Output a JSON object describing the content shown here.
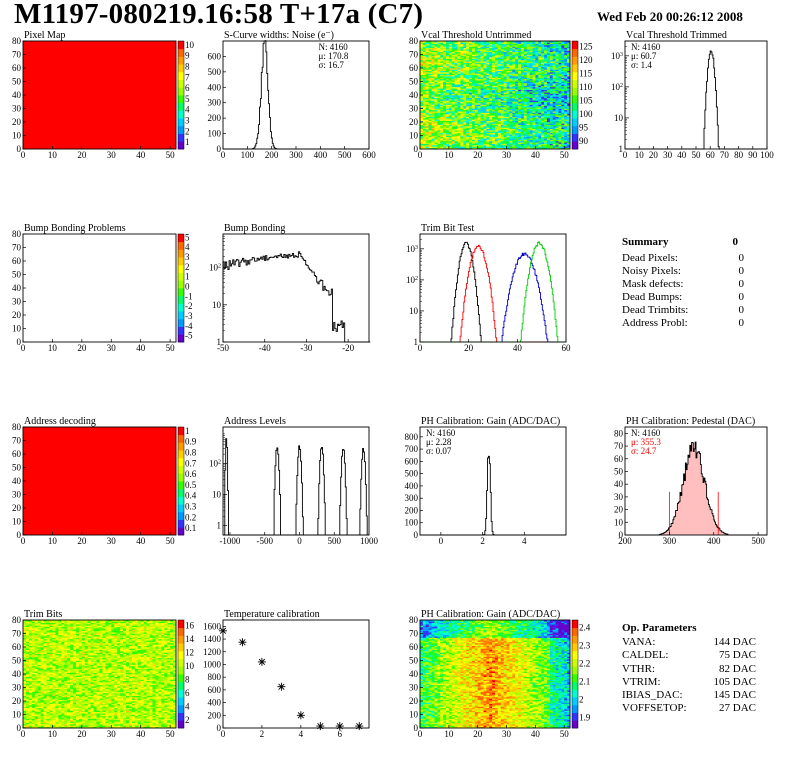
{
  "header": {
    "title": "M1197-080219.16:58 T+17a (C7)",
    "date": "Wed Feb 20 00:26:12 2008"
  },
  "summary": {
    "title": "Summary",
    "total": "0",
    "rows": [
      {
        "label": "Dead Pixels:",
        "value": "0"
      },
      {
        "label": "Noisy Pixels:",
        "value": "0"
      },
      {
        "label": "Mask defects:",
        "value": "0"
      },
      {
        "label": "Dead Bumps:",
        "value": "0"
      },
      {
        "label": "Dead Trimbits:",
        "value": "0"
      },
      {
        "label": "Address Probl:",
        "value": "0"
      }
    ]
  },
  "op_params": {
    "title": "Op. Parameters",
    "rows": [
      {
        "label": "VANA:",
        "value": "144 DAC"
      },
      {
        "label": "CALDEL:",
        "value": "75 DAC"
      },
      {
        "label": "VTHR:",
        "value": "82 DAC"
      },
      {
        "label": "VTRIM:",
        "value": "105 DAC"
      },
      {
        "label": "IBIAS_DAC:",
        "value": "145 DAC"
      },
      {
        "label": "VOFFSETOP:",
        "value": "27 DAC"
      }
    ]
  },
  "colors": {
    "red": "#ff0000",
    "green": "#00cc00",
    "blue": "#0000cc",
    "black": "#000000"
  },
  "chart_data": [
    {
      "id": "pixel-map",
      "type": "heatmap",
      "title": "Pixel Map",
      "pattern": "uniform",
      "xlim": [
        0,
        52
      ],
      "ylim": [
        0,
        80
      ],
      "xticks": [
        0,
        10,
        20,
        30,
        40,
        50
      ],
      "yticks": [
        0,
        10,
        20,
        30,
        40,
        50,
        60,
        70,
        80
      ],
      "palette": {
        "ticks": [
          "1",
          "2",
          "3",
          "4",
          "5",
          "6",
          "7",
          "8",
          "9",
          "10"
        ]
      }
    },
    {
      "id": "scurve-noise",
      "type": "histogram",
      "title": "S-Curve widths: Noise (e⁻)",
      "xlim": [
        0,
        600
      ],
      "ylim": [
        0,
        700
      ],
      "xticks": [
        0,
        100,
        200,
        300,
        400,
        500,
        600
      ],
      "yticks": [
        0,
        100,
        200,
        300,
        400,
        500,
        600
      ],
      "stats": [
        "N: 4160",
        "μ: 170.8",
        "σ: 16.7"
      ],
      "peaks": [
        {
          "mean": 170.8,
          "sigma": 14,
          "height": 660,
          "color": "#000000"
        }
      ]
    },
    {
      "id": "vcal-untrimmed",
      "type": "heatmap",
      "title": "Vcal Threshold Untrimmed",
      "pattern": "untrimmed",
      "xlim": [
        0,
        52
      ],
      "ylim": [
        0,
        80
      ],
      "xticks": [
        0,
        10,
        20,
        30,
        40,
        50
      ],
      "yticks": [
        0,
        10,
        20,
        30,
        40,
        50,
        60,
        70,
        80
      ],
      "palette": {
        "ticks": [
          "90",
          "95",
          "100",
          "105",
          "110",
          "115",
          "120",
          "125"
        ]
      }
    },
    {
      "id": "vcal-trimmed",
      "type": "histogram",
      "title": "Vcal Threshold Trimmed",
      "log": true,
      "xlim": [
        0,
        100
      ],
      "ylim": [
        1,
        3000
      ],
      "xticks": [
        0,
        10,
        20,
        30,
        40,
        50,
        60,
        70,
        80,
        90,
        100
      ],
      "ylogticks": [
        1,
        10,
        100,
        1000
      ],
      "stats": [
        "N: 4160",
        "μ: 60.7",
        "σ: 1.4"
      ],
      "peaks": [
        {
          "mean": 60.7,
          "sigma": 1.4,
          "height": 1400,
          "color": "#000000"
        }
      ]
    },
    {
      "id": "bump-problems",
      "type": "heatmap",
      "title": "Bump Bonding Problems",
      "pattern": "empty",
      "xlim": [
        0,
        52
      ],
      "ylim": [
        0,
        80
      ],
      "xticks": [
        0,
        10,
        20,
        30,
        40,
        50
      ],
      "yticks": [
        0,
        10,
        20,
        30,
        40,
        50,
        60,
        70,
        80
      ],
      "palette": {
        "ticks": [
          "-5",
          "-4",
          "-3",
          "-2",
          "-1",
          "0",
          "1",
          "2",
          "3",
          "4",
          "5"
        ]
      }
    },
    {
      "id": "bump-bonding",
      "type": "histogram",
      "title": "Bump Bonding",
      "log": true,
      "xlim": [
        -50,
        -15
      ],
      "ylim": [
        1,
        800
      ],
      "xticks": [
        -50,
        -40,
        -30,
        -20
      ],
      "ylogticks": [
        1,
        10,
        100
      ],
      "shape": "bump"
    },
    {
      "id": "trim-bit-test",
      "type": "histogram",
      "title": "Trim Bit Test",
      "log": true,
      "xlim": [
        0,
        60
      ],
      "ylim": [
        1,
        3000
      ],
      "xticks": [
        0,
        20,
        40,
        60
      ],
      "ylogticks": [
        1,
        10,
        100,
        1000
      ],
      "peaks": [
        {
          "mean": 19,
          "sigma": 1.6,
          "height": 1500,
          "color": "#000000"
        },
        {
          "mean": 24,
          "sigma": 2.0,
          "height": 1200,
          "color": "#ff0000"
        },
        {
          "mean": 43,
          "sigma": 2.6,
          "height": 700,
          "color": "#0000cc"
        },
        {
          "mean": 49,
          "sigma": 2.0,
          "height": 1500,
          "color": "#00cc00"
        }
      ]
    },
    {
      "id": "address-decoding",
      "type": "heatmap",
      "title": "Address decoding",
      "pattern": "uniform",
      "xlim": [
        0,
        52
      ],
      "ylim": [
        0,
        80
      ],
      "xticks": [
        0,
        10,
        20,
        30,
        40,
        50
      ],
      "yticks": [
        0,
        10,
        20,
        30,
        40,
        50,
        60,
        70,
        80
      ],
      "palette": {
        "ticks": [
          "0.1",
          "0.2",
          "0.3",
          "0.4",
          "0.5",
          "0.6",
          "0.7",
          "0.8",
          "0.9",
          "1"
        ]
      }
    },
    {
      "id": "address-levels",
      "type": "histogram",
      "title": "Address Levels",
      "log": true,
      "xlim": [
        -1100,
        1000
      ],
      "ylim": [
        0.5,
        1500
      ],
      "xticks": [
        -1000,
        -500,
        0,
        500,
        1000
      ],
      "ylogticks": [
        1,
        10,
        100
      ],
      "peaks": [
        {
          "mean": -1050,
          "sigma": 8,
          "height": 700,
          "color": "#000000"
        },
        {
          "mean": -1010,
          "sigma": 6,
          "height": 1,
          "color": "#000000"
        },
        {
          "mean": -320,
          "sigma": 15,
          "height": 350,
          "color": "#000000"
        },
        {
          "mean": 0,
          "sigma": 15,
          "height": 350,
          "color": "#000000"
        },
        {
          "mean": 320,
          "sigma": 15,
          "height": 350,
          "color": "#000000"
        },
        {
          "mean": 630,
          "sigma": 15,
          "height": 300,
          "color": "#000000"
        },
        {
          "mean": 920,
          "sigma": 15,
          "height": 300,
          "color": "#000000"
        }
      ]
    },
    {
      "id": "ph-gain-hist",
      "type": "histogram",
      "title": "PH Calibration: Gain (ADC/DAC)",
      "xlim": [
        -1,
        6
      ],
      "ylim": [
        0,
        880
      ],
      "xticks": [
        0,
        2,
        4
      ],
      "yticks": [
        0,
        100,
        200,
        300,
        400,
        500,
        600,
        700,
        800
      ],
      "stats": [
        "N: 4160",
        "μ: 2.28",
        "σ: 0.07"
      ],
      "peaks": [
        {
          "mean": 2.3,
          "sigma": 0.07,
          "height": 720,
          "color": "#000000"
        }
      ]
    },
    {
      "id": "ph-pedestal",
      "type": "histogram",
      "title": "PH Calibration: Pedestal (DAC)",
      "xlim": [
        200,
        520
      ],
      "ylim": [
        0,
        85
      ],
      "xticks": [
        200,
        300,
        400,
        500
      ],
      "yticks": [
        0,
        10,
        20,
        30,
        40,
        50,
        60,
        70,
        80
      ],
      "stats": [
        "N: 4160",
        "μ: 355.3",
        "σ: 24.7"
      ],
      "stat_colors": [
        "#000000",
        "#ff0000",
        "#ff0000"
      ],
      "peaks": [
        {
          "mean": 355.3,
          "sigma": 24.7,
          "height": 68,
          "color": "#000000"
        }
      ],
      "fill": "#ff0000",
      "markers": [
        300,
        410
      ]
    },
    {
      "id": "trim-bits",
      "type": "heatmap",
      "title": "Trim Bits",
      "pattern": "trimbits",
      "xlim": [
        0,
        52
      ],
      "ylim": [
        0,
        80
      ],
      "xticks": [
        0,
        10,
        20,
        30,
        40,
        50
      ],
      "yticks": [
        0,
        10,
        20,
        30,
        40,
        50,
        60,
        70,
        80
      ],
      "palette": {
        "ticks": [
          "2",
          "4",
          "6",
          "8",
          "10",
          "12",
          "14",
          "16"
        ]
      }
    },
    {
      "id": "temperature-calibration",
      "type": "scatter",
      "title": "Temperature calibration",
      "xlim": [
        0,
        7.5
      ],
      "ylim": [
        0,
        1700
      ],
      "xticks": [
        0,
        2,
        4,
        6
      ],
      "yticks": [
        0,
        200,
        400,
        600,
        800,
        1000,
        1200,
        1400,
        1600
      ],
      "x": [
        0,
        1,
        2,
        3,
        4,
        5,
        6,
        7
      ],
      "y": [
        1530,
        1350,
        1040,
        650,
        200,
        30,
        30,
        30
      ]
    },
    {
      "id": "ph-gain-map",
      "type": "heatmap",
      "title": "PH Calibration: Gain (ADC/DAC)",
      "pattern": "gain",
      "xlim": [
        0,
        52
      ],
      "ylim": [
        0,
        80
      ],
      "xticks": [
        0,
        10,
        20,
        30,
        40,
        50
      ],
      "yticks": [
        0,
        10,
        20,
        30,
        40,
        50,
        60,
        70,
        80
      ],
      "palette": {
        "ticks": [
          "1.9",
          "2",
          "2.1",
          "2.2",
          "2.3",
          "2.4"
        ]
      }
    }
  ]
}
